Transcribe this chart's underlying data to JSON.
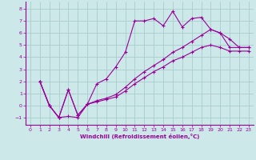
{
  "xlabel": "Windchill (Refroidissement éolien,°C)",
  "bg_color": "#cce8e8",
  "line_color": "#990099",
  "grid_color": "#aacccc",
  "xlim": [
    -0.5,
    23.5
  ],
  "ylim": [
    -1.6,
    8.6
  ],
  "xticks": [
    0,
    1,
    2,
    3,
    4,
    5,
    6,
    7,
    8,
    9,
    10,
    11,
    12,
    13,
    14,
    15,
    16,
    17,
    18,
    19,
    20,
    21,
    22,
    23
  ],
  "yticks": [
    -1,
    0,
    1,
    2,
    3,
    4,
    5,
    6,
    7,
    8
  ],
  "line1_x": [
    1,
    2,
    3,
    4,
    5,
    6,
    7,
    8,
    9,
    10,
    11,
    12,
    13,
    14,
    15,
    16,
    17,
    18,
    19,
    20,
    21,
    22,
    23
  ],
  "line1_y": [
    2,
    0,
    -1,
    1.3,
    -0.8,
    0.1,
    1.8,
    2.2,
    3.2,
    4.4,
    7.0,
    7.0,
    7.2,
    6.6,
    7.8,
    6.5,
    7.2,
    7.3,
    6.3,
    6.0,
    5.5,
    4.8,
    4.8
  ],
  "line2_x": [
    1,
    2,
    3,
    4,
    5,
    6,
    7,
    8,
    9,
    10,
    11,
    12,
    13,
    14,
    15,
    16,
    17,
    18,
    19,
    20,
    21,
    22,
    23
  ],
  "line2_y": [
    2,
    0,
    -1,
    1.3,
    -0.8,
    0.1,
    0.4,
    0.6,
    0.9,
    1.5,
    2.2,
    2.8,
    3.3,
    3.8,
    4.4,
    4.8,
    5.3,
    5.8,
    6.3,
    6.0,
    4.8,
    4.8,
    4.8
  ],
  "line3_x": [
    1,
    2,
    3,
    4,
    5,
    6,
    7,
    8,
    9,
    10,
    11,
    12,
    13,
    14,
    15,
    16,
    17,
    18,
    19,
    20,
    21,
    22,
    23
  ],
  "line3_y": [
    2,
    0,
    -1,
    -0.9,
    -1.0,
    0.1,
    0.3,
    0.5,
    0.7,
    1.2,
    1.8,
    2.3,
    2.8,
    3.2,
    3.7,
    4.0,
    4.4,
    4.8,
    5.0,
    4.8,
    4.5,
    4.5,
    4.5
  ]
}
